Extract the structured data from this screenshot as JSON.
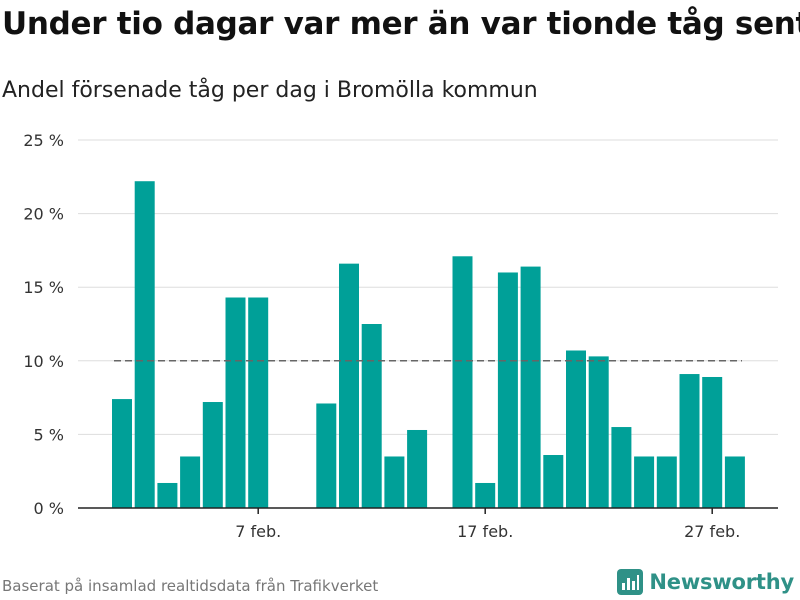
{
  "title": "Under tio dagar var mer än var tionde tåg sent",
  "subtitle": "Andel försenade tåg per dag i Bromölla kommun",
  "source": "Baserat på insamlad realtidsdata från Trafikverket",
  "brand": {
    "name": "Newsworthy",
    "icon": "newsworthy-logo-icon"
  },
  "colors": {
    "bar": "#00a098",
    "reference": "#666666",
    "grid": "#dddddd",
    "axis": "#222222"
  },
  "chart_data": {
    "type": "bar",
    "xlabel": "",
    "ylabel": "",
    "ylim": [
      0,
      25
    ],
    "yticks": [
      0,
      5,
      10,
      15,
      20,
      25
    ],
    "ytick_labels": [
      "0 %",
      "5 %",
      "10 %",
      "15 %",
      "20 %",
      "25 %"
    ],
    "x_tick_labels": [
      {
        "day": 7,
        "label": "7 feb."
      },
      {
        "day": 17,
        "label": "17 feb."
      },
      {
        "day": 27,
        "label": "27 feb."
      }
    ],
    "reference_line": 10,
    "grid": true,
    "days": [
      1,
      2,
      3,
      4,
      5,
      6,
      7,
      8,
      9,
      10,
      11,
      12,
      13,
      14,
      15,
      16,
      17,
      18,
      19,
      20,
      21,
      22,
      23,
      24,
      25,
      26,
      27,
      28
    ],
    "values": [
      7.4,
      22.2,
      1.7,
      3.5,
      7.2,
      14.3,
      14.3,
      null,
      null,
      7.1,
      16.6,
      12.5,
      3.5,
      5.3,
      null,
      17.1,
      1.7,
      16.0,
      16.4,
      3.6,
      10.7,
      10.3,
      5.5,
      3.5,
      3.5,
      9.1,
      8.9,
      3.5
    ]
  }
}
